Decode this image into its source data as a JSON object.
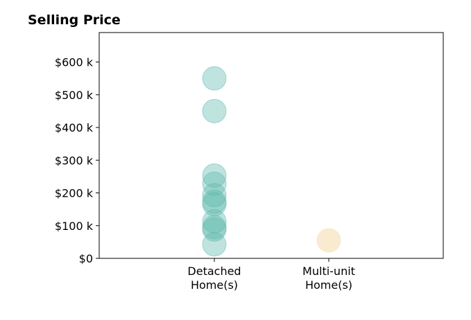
{
  "chart_data": {
    "type": "scatter",
    "title": "Selling Price",
    "xlabel": "",
    "ylabel": "",
    "categories": [
      "Detached\nHome(s)",
      "Multi-unit\nHome(s)"
    ],
    "ylim": [
      0,
      690000
    ],
    "yticks": [
      {
        "value": 0,
        "label": "$0"
      },
      {
        "value": 100000,
        "label": "$100 k"
      },
      {
        "value": 200000,
        "label": "$200 k"
      },
      {
        "value": 300000,
        "label": "$300 k"
      },
      {
        "value": 400000,
        "label": "$400 k"
      },
      {
        "value": 500000,
        "label": "$500 k"
      },
      {
        "value": 600000,
        "label": "$600 k"
      }
    ],
    "grid": false,
    "series": [
      {
        "category": "Detached\nHome(s)",
        "color": "#5fb8ad",
        "values": [
          550000,
          450000,
          253000,
          228000,
          193000,
          173000,
          165000,
          113000,
          95000,
          88000,
          43000
        ]
      },
      {
        "category": "Multi-unit\nHome(s)",
        "color": "#f5deb0",
        "values": [
          55000
        ]
      }
    ]
  }
}
